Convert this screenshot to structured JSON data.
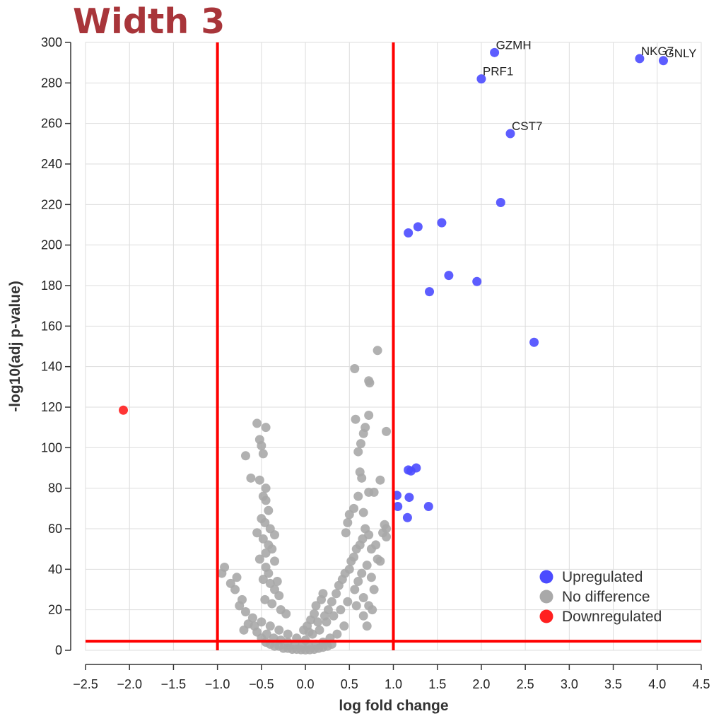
{
  "heading": "Width 3",
  "colors": {
    "heading": "#a8353a",
    "upregulated": "#4b4bff",
    "no_difference": "#a9a9a9",
    "downregulated": "#ff1f1f",
    "threshold_lines": "#ff0000",
    "grid": "#dddddd"
  },
  "chart_data": {
    "type": "scatter",
    "title": "",
    "xlabel": "log fold change",
    "ylabel": "-log10(adj p-value)",
    "xlim": [
      -2.5,
      4.5
    ],
    "ylim": [
      0,
      300
    ],
    "xticks": [
      "−2.5",
      "−2.0",
      "−1.5",
      "−1.0",
      "−0.5",
      "0.0",
      "0.5",
      "1.0",
      "1.5",
      "2.0",
      "2.5",
      "3.0",
      "3.5",
      "4.0",
      "4.5"
    ],
    "xtick_values": [
      -2.5,
      -2.0,
      -1.5,
      -1.0,
      -0.5,
      0.0,
      0.5,
      1.0,
      1.5,
      2.0,
      2.5,
      3.0,
      3.5,
      4.0,
      4.5
    ],
    "yticks": [
      "0",
      "20",
      "40",
      "60",
      "80",
      "100",
      "120",
      "140",
      "160",
      "180",
      "200",
      "220",
      "240",
      "260",
      "280",
      "300"
    ],
    "ytick_values": [
      0,
      20,
      40,
      60,
      80,
      100,
      120,
      140,
      160,
      180,
      200,
      220,
      240,
      260,
      280,
      300
    ],
    "grid": true,
    "legend_position": "bottom-right",
    "legend": [
      "Upregulated",
      "No difference",
      "Downregulated"
    ],
    "thresholds": {
      "x": [
        -1.0,
        1.0
      ],
      "y": 4.5
    },
    "series": [
      {
        "name": "Upregulated",
        "points": [
          [
            2.15,
            295,
            "GZMH"
          ],
          [
            2.0,
            282,
            "PRF1"
          ],
          [
            3.8,
            292,
            "NKG7"
          ],
          [
            4.07,
            291,
            "GNLY"
          ],
          [
            2.33,
            255,
            "CST7"
          ],
          [
            2.22,
            221
          ],
          [
            1.55,
            211
          ],
          [
            1.28,
            209
          ],
          [
            1.17,
            206
          ],
          [
            1.63,
            185
          ],
          [
            1.95,
            182
          ],
          [
            1.41,
            177
          ],
          [
            2.6,
            152
          ],
          [
            1.26,
            90
          ],
          [
            1.17,
            89
          ],
          [
            1.2,
            88.5
          ],
          [
            1.04,
            76.5
          ],
          [
            1.18,
            75.5
          ],
          [
            1.05,
            71
          ],
          [
            1.4,
            71
          ],
          [
            1.16,
            65.5
          ]
        ]
      },
      {
        "name": "No difference",
        "points": [
          [
            -0.55,
            112
          ],
          [
            -0.45,
            110
          ],
          [
            -0.52,
            104
          ],
          [
            -0.5,
            101
          ],
          [
            -0.48,
            97
          ],
          [
            -0.68,
            96
          ],
          [
            -0.62,
            85
          ],
          [
            -0.52,
            84
          ],
          [
            -0.45,
            80
          ],
          [
            -0.48,
            76
          ],
          [
            -0.45,
            74
          ],
          [
            -0.42,
            69
          ],
          [
            -0.5,
            65
          ],
          [
            -0.46,
            63
          ],
          [
            -0.4,
            60
          ],
          [
            -0.55,
            58
          ],
          [
            -0.35,
            57
          ],
          [
            -0.48,
            55
          ],
          [
            -0.42,
            52
          ],
          [
            -0.38,
            50
          ],
          [
            -0.45,
            48
          ],
          [
            -0.52,
            45
          ],
          [
            -0.35,
            44
          ],
          [
            -0.45,
            41
          ],
          [
            -0.42,
            38
          ],
          [
            -0.48,
            35
          ],
          [
            -0.4,
            33
          ],
          [
            -0.32,
            34
          ],
          [
            -0.35,
            30
          ],
          [
            -0.3,
            27
          ],
          [
            -0.46,
            25
          ],
          [
            -0.38,
            23
          ],
          [
            -0.28,
            20
          ],
          [
            -0.22,
            18
          ],
          [
            -0.92,
            41
          ],
          [
            -0.95,
            38
          ],
          [
            -0.78,
            36
          ],
          [
            -0.85,
            33
          ],
          [
            -0.8,
            30
          ],
          [
            -0.72,
            25
          ],
          [
            -0.75,
            22
          ],
          [
            -0.68,
            19
          ],
          [
            -0.6,
            16
          ],
          [
            -0.65,
            13
          ],
          [
            -0.7,
            10
          ],
          [
            -0.55,
            9
          ],
          [
            -0.5,
            6
          ],
          [
            -0.45,
            4
          ],
          [
            -0.4,
            3
          ],
          [
            -0.35,
            2
          ],
          [
            -0.3,
            2
          ],
          [
            -0.25,
            1
          ],
          [
            -0.2,
            1
          ],
          [
            -0.15,
            0.5
          ],
          [
            -0.1,
            0.5
          ],
          [
            -0.05,
            0.3
          ],
          [
            0.0,
            0.2
          ],
          [
            0.05,
            0.3
          ],
          [
            0.1,
            0.5
          ],
          [
            0.15,
            1
          ],
          [
            0.2,
            1.5
          ],
          [
            0.25,
            2
          ],
          [
            0.3,
            3
          ],
          [
            -0.58,
            12
          ],
          [
            -0.44,
            8
          ],
          [
            -0.36,
            6
          ],
          [
            -0.28,
            5
          ],
          [
            -0.2,
            4
          ],
          [
            -0.12,
            3
          ],
          [
            -0.04,
            2
          ],
          [
            0.04,
            2
          ],
          [
            0.12,
            3
          ],
          [
            0.2,
            4
          ],
          [
            0.28,
            6
          ],
          [
            0.36,
            8
          ],
          [
            0.44,
            12
          ],
          [
            -0.5,
            14
          ],
          [
            -0.4,
            12
          ],
          [
            -0.3,
            10
          ],
          [
            -0.2,
            8
          ],
          [
            -0.1,
            6
          ],
          [
            0.0,
            5
          ],
          [
            0.08,
            8
          ],
          [
            0.16,
            10
          ],
          [
            0.24,
            14
          ],
          [
            0.32,
            17
          ],
          [
            0.4,
            20
          ],
          [
            0.48,
            24
          ],
          [
            0.02,
            12
          ],
          [
            0.06,
            15
          ],
          [
            0.1,
            18
          ],
          [
            0.12,
            22
          ],
          [
            0.18,
            25
          ],
          [
            0.2,
            28
          ],
          [
            0.26,
            20
          ],
          [
            0.3,
            24
          ],
          [
            0.14,
            14
          ],
          [
            0.22,
            17
          ],
          [
            0.04,
            9
          ],
          [
            -0.02,
            10
          ],
          [
            0.35,
            28
          ],
          [
            0.38,
            32
          ],
          [
            0.42,
            35
          ],
          [
            0.45,
            38
          ],
          [
            0.5,
            40
          ],
          [
            0.52,
            44
          ],
          [
            0.55,
            46
          ],
          [
            0.58,
            50
          ],
          [
            0.62,
            52
          ],
          [
            0.65,
            55
          ],
          [
            0.68,
            60
          ],
          [
            0.72,
            57
          ],
          [
            0.56,
            30
          ],
          [
            0.6,
            34
          ],
          [
            0.64,
            38
          ],
          [
            0.7,
            42
          ],
          [
            0.75,
            36
          ],
          [
            0.78,
            30
          ],
          [
            0.66,
            26
          ],
          [
            0.72,
            22
          ],
          [
            0.76,
            20
          ],
          [
            0.7,
            12
          ],
          [
            0.66,
            17
          ],
          [
            0.58,
            22
          ],
          [
            0.46,
            58
          ],
          [
            0.48,
            63
          ],
          [
            0.5,
            67
          ],
          [
            0.55,
            70
          ],
          [
            0.6,
            76
          ],
          [
            0.62,
            88
          ],
          [
            0.64,
            85
          ],
          [
            0.6,
            98
          ],
          [
            0.63,
            102
          ],
          [
            0.66,
            107
          ],
          [
            0.68,
            110
          ],
          [
            0.57,
            114
          ],
          [
            0.72,
            116
          ],
          [
            0.82,
            148
          ],
          [
            0.72,
            133
          ],
          [
            0.73,
            132
          ],
          [
            0.56,
            139
          ],
          [
            0.92,
            108
          ],
          [
            0.85,
            84
          ],
          [
            0.78,
            78
          ],
          [
            0.72,
            78
          ],
          [
            0.66,
            68
          ],
          [
            0.9,
            62
          ],
          [
            0.88,
            58
          ],
          [
            0.92,
            56
          ],
          [
            0.8,
            52
          ],
          [
            0.85,
            44
          ],
          [
            0.82,
            45
          ],
          [
            0.75,
            50
          ],
          [
            0.92,
            60
          ]
        ]
      },
      {
        "name": "Downregulated",
        "points": [
          [
            -2.07,
            118.5
          ]
        ]
      }
    ]
  }
}
